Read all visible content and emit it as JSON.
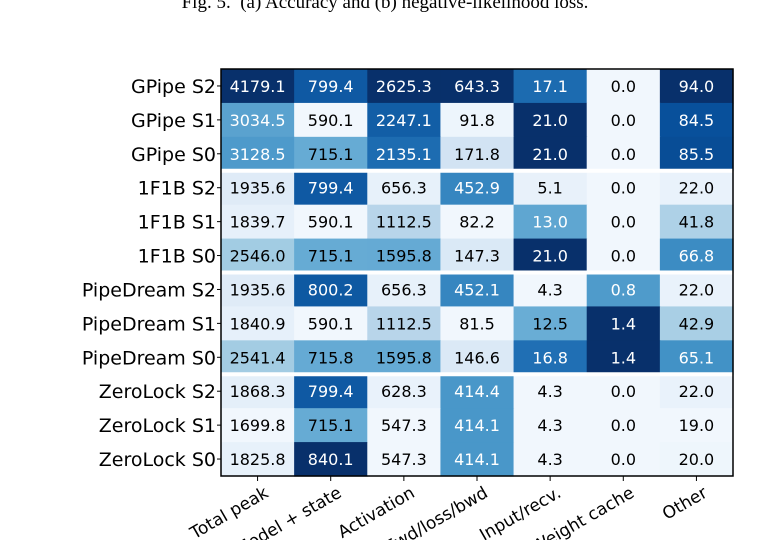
{
  "caption": "Fig. 5.  (a) Accuracy and (b) negative-likelihood loss.",
  "chart_data": {
    "type": "heatmap",
    "columns": [
      "Total peak",
      "Model + state",
      "Activation",
      "Fwd/loss/bwd",
      "Input/recv.",
      "Weight cache",
      "Other"
    ],
    "rows": [
      {
        "label": "GPipe S2",
        "values": [
          4179.1,
          799.4,
          2625.3,
          643.3,
          17.1,
          0.0,
          94.0
        ]
      },
      {
        "label": "GPipe S1",
        "values": [
          3034.5,
          590.1,
          2247.1,
          91.8,
          21.0,
          0.0,
          84.5
        ]
      },
      {
        "label": "GPipe S0",
        "values": [
          3128.5,
          715.1,
          2135.1,
          171.8,
          21.0,
          0.0,
          85.5
        ]
      },
      {
        "label": "1F1B S2",
        "values": [
          1935.6,
          799.4,
          656.3,
          452.9,
          5.1,
          0.0,
          22.0
        ]
      },
      {
        "label": "1F1B S1",
        "values": [
          1839.7,
          590.1,
          1112.5,
          82.2,
          13.0,
          0.0,
          41.8
        ]
      },
      {
        "label": "1F1B S0",
        "values": [
          2546.0,
          715.1,
          1595.8,
          147.3,
          21.0,
          0.0,
          66.8
        ]
      },
      {
        "label": "PipeDream S2",
        "values": [
          1935.6,
          800.2,
          656.3,
          452.1,
          4.3,
          0.8,
          22.0
        ]
      },
      {
        "label": "PipeDream S1",
        "values": [
          1840.9,
          590.1,
          1112.5,
          81.5,
          12.5,
          1.4,
          42.9
        ]
      },
      {
        "label": "PipeDream S0",
        "values": [
          2541.4,
          715.8,
          1595.8,
          146.6,
          16.8,
          1.4,
          65.1
        ]
      },
      {
        "label": "ZeroLock S2",
        "values": [
          1868.3,
          799.4,
          628.3,
          414.4,
          4.3,
          0.0,
          22.0
        ]
      },
      {
        "label": "ZeroLock S1",
        "values": [
          1699.8,
          715.1,
          547.3,
          414.1,
          4.3,
          0.0,
          19.0
        ]
      },
      {
        "label": "ZeroLock S0",
        "values": [
          1825.8,
          840.1,
          547.3,
          414.1,
          4.3,
          0.0,
          20.0
        ]
      }
    ],
    "group_separators_after_rows": [
      3,
      6,
      9
    ],
    "colormap": "Blues",
    "color_scale": "per-column"
  }
}
